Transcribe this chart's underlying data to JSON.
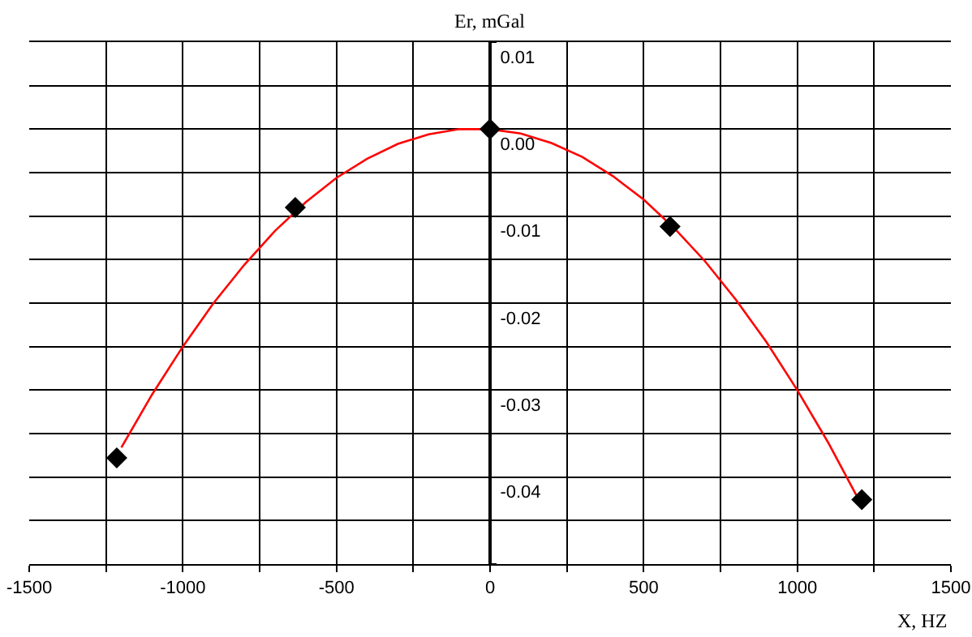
{
  "chart_data": {
    "type": "scatter",
    "xlabel": "X, HZ",
    "ylabel": "Er, mGal",
    "grid": true,
    "xlim": [
      -1500,
      1500
    ],
    "xticks": [
      -1500,
      {
        "value": -1250,
        "label": null
      },
      -1000,
      {
        "value": -750,
        "label": null
      },
      -500,
      {
        "value": -250,
        "label": null
      },
      0,
      {
        "value": 250,
        "label": null
      },
      500,
      {
        "value": 750,
        "label": null
      },
      1000,
      {
        "value": 1250,
        "label": null
      },
      1500
    ],
    "ylim": [
      -0.05,
      0.01
    ],
    "yticks": [
      {
        "value": -0.05,
        "label": null
      },
      {
        "value": -0.045,
        "label": null
      },
      -0.04,
      {
        "value": -0.035,
        "label": null
      },
      -0.03,
      {
        "value": -0.025,
        "label": null
      },
      -0.02,
      {
        "value": -0.015,
        "label": null
      },
      -0.01,
      {
        "value": -0.005,
        "label": null
      },
      {
        "value": 0,
        "label": "0.00"
      },
      {
        "value": 0.005,
        "label": null
      },
      0.01
    ],
    "series": [
      {
        "type": "line",
        "color": "#ff0000",
        "marker": "none",
        "line_style": "solid",
        "x": [
          -1200,
          -1100,
          -1000,
          -900,
          -800,
          -700,
          -600,
          -500,
          -400,
          -300,
          -200,
          -100,
          0,
          100,
          200,
          300,
          400,
          500,
          600,
          700,
          800,
          900,
          1000,
          1100,
          1200
        ],
        "values": [
          -0.0366,
          -0.0305,
          -0.025,
          -0.02,
          -0.0156,
          -0.0117,
          -0.0084,
          -0.0056,
          -0.0034,
          -0.0017,
          -0.0006,
          0,
          0,
          -0.0005,
          -0.0016,
          -0.0032,
          -0.0054,
          -0.0081,
          -0.0114,
          -0.0152,
          -0.0196,
          -0.0245,
          -0.03,
          -0.036,
          -0.0426
        ]
      },
      {
        "type": "scatter",
        "color": "#000000",
        "marker": "diamond",
        "x": [
          -1215,
          -634,
          0,
          586,
          1210
        ],
        "values": [
          -0.0378,
          -0.009,
          0,
          -0.0112,
          -0.0426
        ]
      }
    ]
  }
}
